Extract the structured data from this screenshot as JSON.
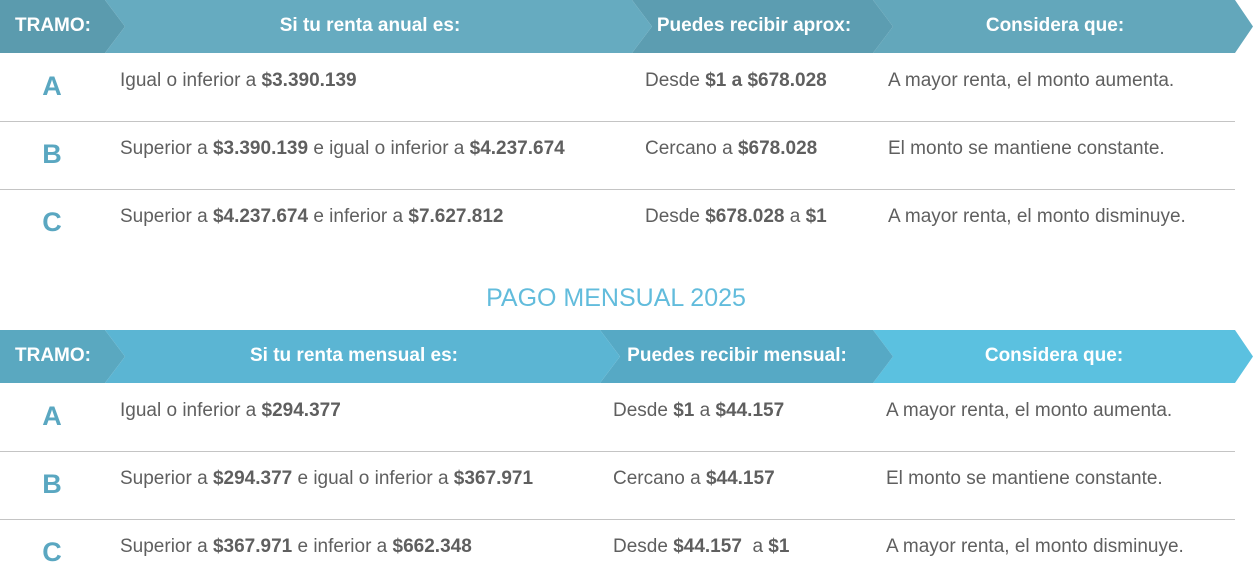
{
  "tables": [
    {
      "header": [
        "TRAMO:",
        "Si tu renta anual es:",
        "Puedes recibir aprox:",
        "Considera que:"
      ],
      "rows": [
        {
          "tramo": "A",
          "cells": [
            [
              {
                "text": "Igual o inferior a ",
                "bold": false
              },
              {
                "text": "$3.390.139",
                "bold": true
              }
            ],
            [
              {
                "text": "Desde ",
                "bold": false
              },
              {
                "text": "$1 a $678.028",
                "bold": true
              }
            ],
            [
              {
                "text": "A mayor renta, el monto aumenta.",
                "bold": false
              }
            ]
          ]
        },
        {
          "tramo": "B",
          "cells": [
            [
              {
                "text": "Superior a ",
                "bold": false
              },
              {
                "text": "$3.390.139",
                "bold": true
              },
              {
                "text": " e igual o inferior a ",
                "bold": false
              },
              {
                "text": "$4.237.674",
                "bold": true
              }
            ],
            [
              {
                "text": "Cercano a ",
                "bold": false
              },
              {
                "text": "$678.028",
                "bold": true
              }
            ],
            [
              {
                "text": "El monto se mantiene constante.",
                "bold": false
              }
            ]
          ]
        },
        {
          "tramo": "C",
          "cells": [
            [
              {
                "text": "Superior a ",
                "bold": false
              },
              {
                "text": "$4.237.674",
                "bold": true
              },
              {
                "text": " e inferior a ",
                "bold": false
              },
              {
                "text": "$7.627.812",
                "bold": true
              }
            ],
            [
              {
                "text": "Desde ",
                "bold": false
              },
              {
                "text": "$678.028",
                "bold": true
              },
              {
                "text": " a ",
                "bold": false
              },
              {
                "text": "$1",
                "bold": true
              }
            ],
            [
              {
                "text": "A mayor renta, el monto disminuye.",
                "bold": false
              }
            ]
          ]
        }
      ]
    },
    {
      "title": "PAGO MENSUAL 2025",
      "header": [
        "TRAMO:",
        "Si tu renta mensual es:",
        "Puedes recibir mensual:",
        "Considera que:"
      ],
      "rows": [
        {
          "tramo": "A",
          "cells": [
            [
              {
                "text": "Igual o inferior a ",
                "bold": false
              },
              {
                "text": "$294.377",
                "bold": true
              }
            ],
            [
              {
                "text": "Desde ",
                "bold": false
              },
              {
                "text": "$1",
                "bold": true
              },
              {
                "text": " a ",
                "bold": false
              },
              {
                "text": "$44.157",
                "bold": true
              }
            ],
            [
              {
                "text": "A mayor renta, el monto aumenta.",
                "bold": false
              }
            ]
          ]
        },
        {
          "tramo": "B",
          "cells": [
            [
              {
                "text": "Superior a ",
                "bold": false
              },
              {
                "text": "$294.377",
                "bold": true
              },
              {
                "text": " e igual o inferior a ",
                "bold": false
              },
              {
                "text": "$367.971",
                "bold": true
              }
            ],
            [
              {
                "text": "Cercano a ",
                "bold": false
              },
              {
                "text": "$44.157",
                "bold": true
              }
            ],
            [
              {
                "text": "El monto se mantiene constante.",
                "bold": false
              }
            ]
          ]
        },
        {
          "tramo": "C",
          "cells": [
            [
              {
                "text": "Superior a ",
                "bold": false
              },
              {
                "text": "$367.971",
                "bold": true
              },
              {
                "text": " e inferior a ",
                "bold": false
              },
              {
                "text": "$662.348",
                "bold": true
              }
            ],
            [
              {
                "text": "Desde ",
                "bold": false
              },
              {
                "text": "$44.157",
                "bold": true
              },
              {
                "text": "  a ",
                "bold": false
              },
              {
                "text": "$1",
                "bold": true
              }
            ],
            [
              {
                "text": "A mayor renta, el monto disminuye.",
                "bold": false
              }
            ]
          ]
        }
      ]
    }
  ]
}
